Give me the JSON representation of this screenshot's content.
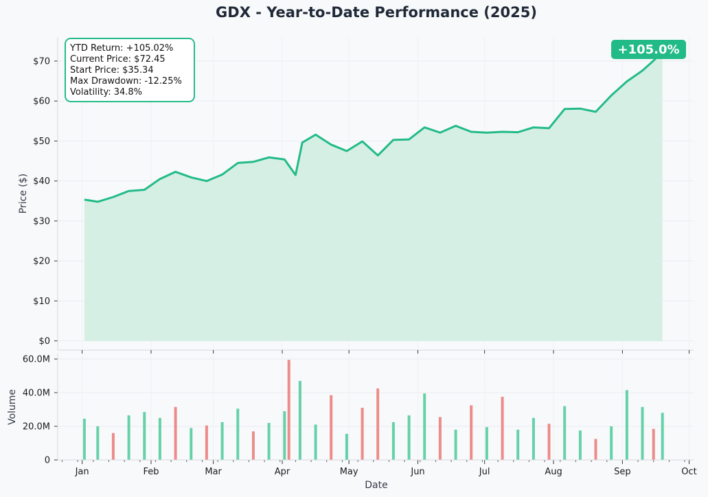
{
  "chart_data": [
    {
      "type": "area",
      "title": "GDX - Year-to-Date Performance (2025)",
      "xlabel": "",
      "ylabel": "Price ($)",
      "ylim": [
        -2.3,
        76
      ],
      "yticks": [
        0,
        10,
        20,
        30,
        40,
        50,
        60,
        70
      ],
      "ytick_labels": [
        "$0",
        "$10",
        "$20",
        "$30",
        "$40",
        "$50",
        "$60",
        "$70"
      ],
      "grid": true,
      "line_color": "#22bb88",
      "fill_color": "#d4eee3",
      "series": [
        {
          "x": [
            "2025-01-02",
            "2025-01-08",
            "2025-01-15",
            "2025-01-22",
            "2025-01-29",
            "2025-02-05",
            "2025-02-12",
            "2025-02-19",
            "2025-02-26",
            "2025-03-05",
            "2025-03-12",
            "2025-03-19",
            "2025-03-26",
            "2025-04-02",
            "2025-04-07",
            "2025-04-10",
            "2025-04-16",
            "2025-04-23",
            "2025-04-30",
            "2025-05-07",
            "2025-05-14",
            "2025-05-21",
            "2025-05-28",
            "2025-06-04",
            "2025-06-11",
            "2025-06-18",
            "2025-06-25",
            "2025-07-02",
            "2025-07-09",
            "2025-07-16",
            "2025-07-23",
            "2025-07-30",
            "2025-08-06",
            "2025-08-13",
            "2025-08-20",
            "2025-08-27",
            "2025-09-03",
            "2025-09-10",
            "2025-09-15",
            "2025-09-19"
          ],
          "values": [
            35.34,
            34.8,
            36.0,
            37.5,
            37.8,
            40.5,
            42.3,
            40.9,
            40.0,
            41.6,
            44.5,
            44.8,
            45.9,
            45.4,
            41.5,
            49.6,
            51.6,
            49.1,
            47.5,
            49.9,
            46.4,
            50.3,
            50.4,
            53.4,
            52.1,
            53.8,
            52.3,
            52.1,
            52.3,
            52.2,
            53.4,
            53.2,
            58.0,
            58.1,
            57.3,
            61.4,
            64.9,
            67.6,
            70.1,
            72.45
          ]
        }
      ]
    },
    {
      "type": "bar",
      "xlabel": "Date",
      "ylabel": "Volume",
      "ylim": [
        0,
        60000000
      ],
      "yticks": [
        0,
        20000000,
        40000000,
        60000000
      ],
      "ytick_labels": [
        "0",
        "20.0M",
        "40.0M",
        "60.0M"
      ],
      "x_tick_dates": [
        "2025-01-01",
        "2025-02-01",
        "2025-03-01",
        "2025-04-01",
        "2025-05-01",
        "2025-06-01",
        "2025-07-01",
        "2025-08-01",
        "2025-09-01",
        "2025-10-01"
      ],
      "x_tick_labels": [
        "Jan",
        "Feb",
        "Mar",
        "Apr",
        "May",
        "Jun",
        "Jul",
        "Aug",
        "Sep",
        "Oct"
      ],
      "up_color": "#66d1a9",
      "down_color": "#ec8c8a",
      "series": [
        {
          "x": [
            "2025-01-02",
            "2025-01-08",
            "2025-01-15",
            "2025-01-22",
            "2025-01-29",
            "2025-02-05",
            "2025-02-12",
            "2025-02-19",
            "2025-02-26",
            "2025-03-05",
            "2025-03-12",
            "2025-03-19",
            "2025-03-26",
            "2025-04-02",
            "2025-04-04",
            "2025-04-09",
            "2025-04-16",
            "2025-04-23",
            "2025-04-30",
            "2025-05-07",
            "2025-05-14",
            "2025-05-21",
            "2025-05-28",
            "2025-06-04",
            "2025-06-11",
            "2025-06-18",
            "2025-06-25",
            "2025-07-02",
            "2025-07-09",
            "2025-07-16",
            "2025-07-23",
            "2025-07-30",
            "2025-08-06",
            "2025-08-13",
            "2025-08-20",
            "2025-08-27",
            "2025-09-03",
            "2025-09-10",
            "2025-09-15",
            "2025-09-19"
          ],
          "values": [
            24500000,
            20000000,
            16000000,
            26500000,
            28500000,
            25000000,
            31500000,
            19000000,
            20500000,
            22500000,
            30500000,
            17000000,
            22000000,
            29000000,
            59500000,
            47000000,
            21000000,
            38500000,
            15500000,
            31000000,
            42500000,
            22500000,
            26500000,
            39500000,
            25500000,
            18000000,
            32500000,
            19500000,
            37500000,
            18000000,
            25000000,
            21500000,
            32000000,
            17500000,
            12500000,
            20000000,
            41500000,
            31500000,
            18500000,
            28000000
          ],
          "direction": [
            "up",
            "up",
            "down",
            "up",
            "up",
            "up",
            "down",
            "up",
            "down",
            "up",
            "up",
            "down",
            "up",
            "up",
            "down",
            "up",
            "up",
            "down",
            "up",
            "down",
            "down",
            "up",
            "up",
            "up",
            "down",
            "up",
            "down",
            "up",
            "down",
            "up",
            "up",
            "down",
            "up",
            "up",
            "down",
            "up",
            "up",
            "up",
            "down",
            "up"
          ]
        }
      ]
    }
  ],
  "stats_box": [
    "YTD Return: +105.02%",
    "Current Price: $72.45",
    "Start Price: $35.34",
    "Max Drawdown: -12.25%",
    "Volatility: 34.8%"
  ],
  "badge": "+105.0%",
  "badge_color": "#22bb88"
}
